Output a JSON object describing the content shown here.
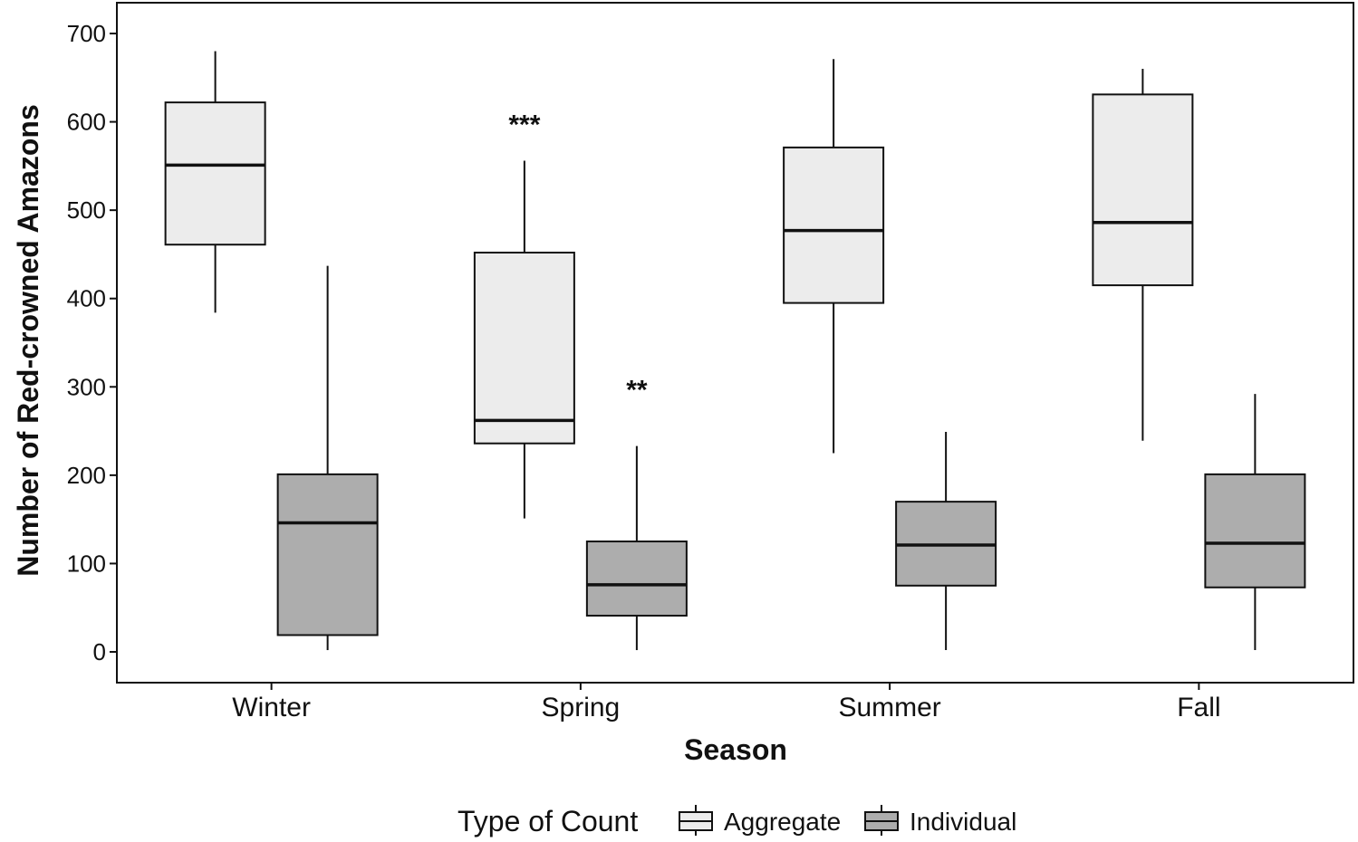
{
  "chart_data": {
    "type": "boxplot",
    "title": "",
    "xlabel": "Season",
    "ylabel": "Number of Red-crowned Amazons",
    "ylim": [
      -35,
      735
    ],
    "yticks": [
      0,
      100,
      200,
      300,
      400,
      500,
      600,
      700
    ],
    "categories": [
      "Winter",
      "Spring",
      "Summer",
      "Fall"
    ],
    "grid": false,
    "legend": {
      "title": "Type of Count",
      "position": "bottom"
    },
    "series": [
      {
        "name": "Aggregate",
        "color": "#ececec",
        "boxes": [
          {
            "min": 384,
            "q1": 461,
            "median": 551,
            "q3": 622,
            "max": 680
          },
          {
            "min": 151,
            "q1": 236,
            "median": 262,
            "q3": 452,
            "max": 556
          },
          {
            "min": 225,
            "q1": 395,
            "median": 477,
            "q3": 571,
            "max": 671
          },
          {
            "min": 239,
            "q1": 415,
            "median": 486,
            "q3": 631,
            "max": 660
          }
        ]
      },
      {
        "name": "Individual",
        "color": "#adadad",
        "boxes": [
          {
            "min": 2,
            "q1": 19,
            "median": 146,
            "q3": 201,
            "max": 437
          },
          {
            "min": 2,
            "q1": 41,
            "median": 76,
            "q3": 125,
            "max": 233
          },
          {
            "min": 2,
            "q1": 75,
            "median": 121,
            "q3": 170,
            "max": 249
          },
          {
            "min": 2,
            "q1": 73,
            "median": 123,
            "q3": 201,
            "max": 292
          }
        ]
      }
    ],
    "annotations": [
      {
        "text": "***",
        "category": "Spring",
        "series": "Aggregate",
        "y": 600
      },
      {
        "text": "**",
        "category": "Spring",
        "series": "Individual",
        "y": 300
      }
    ]
  }
}
